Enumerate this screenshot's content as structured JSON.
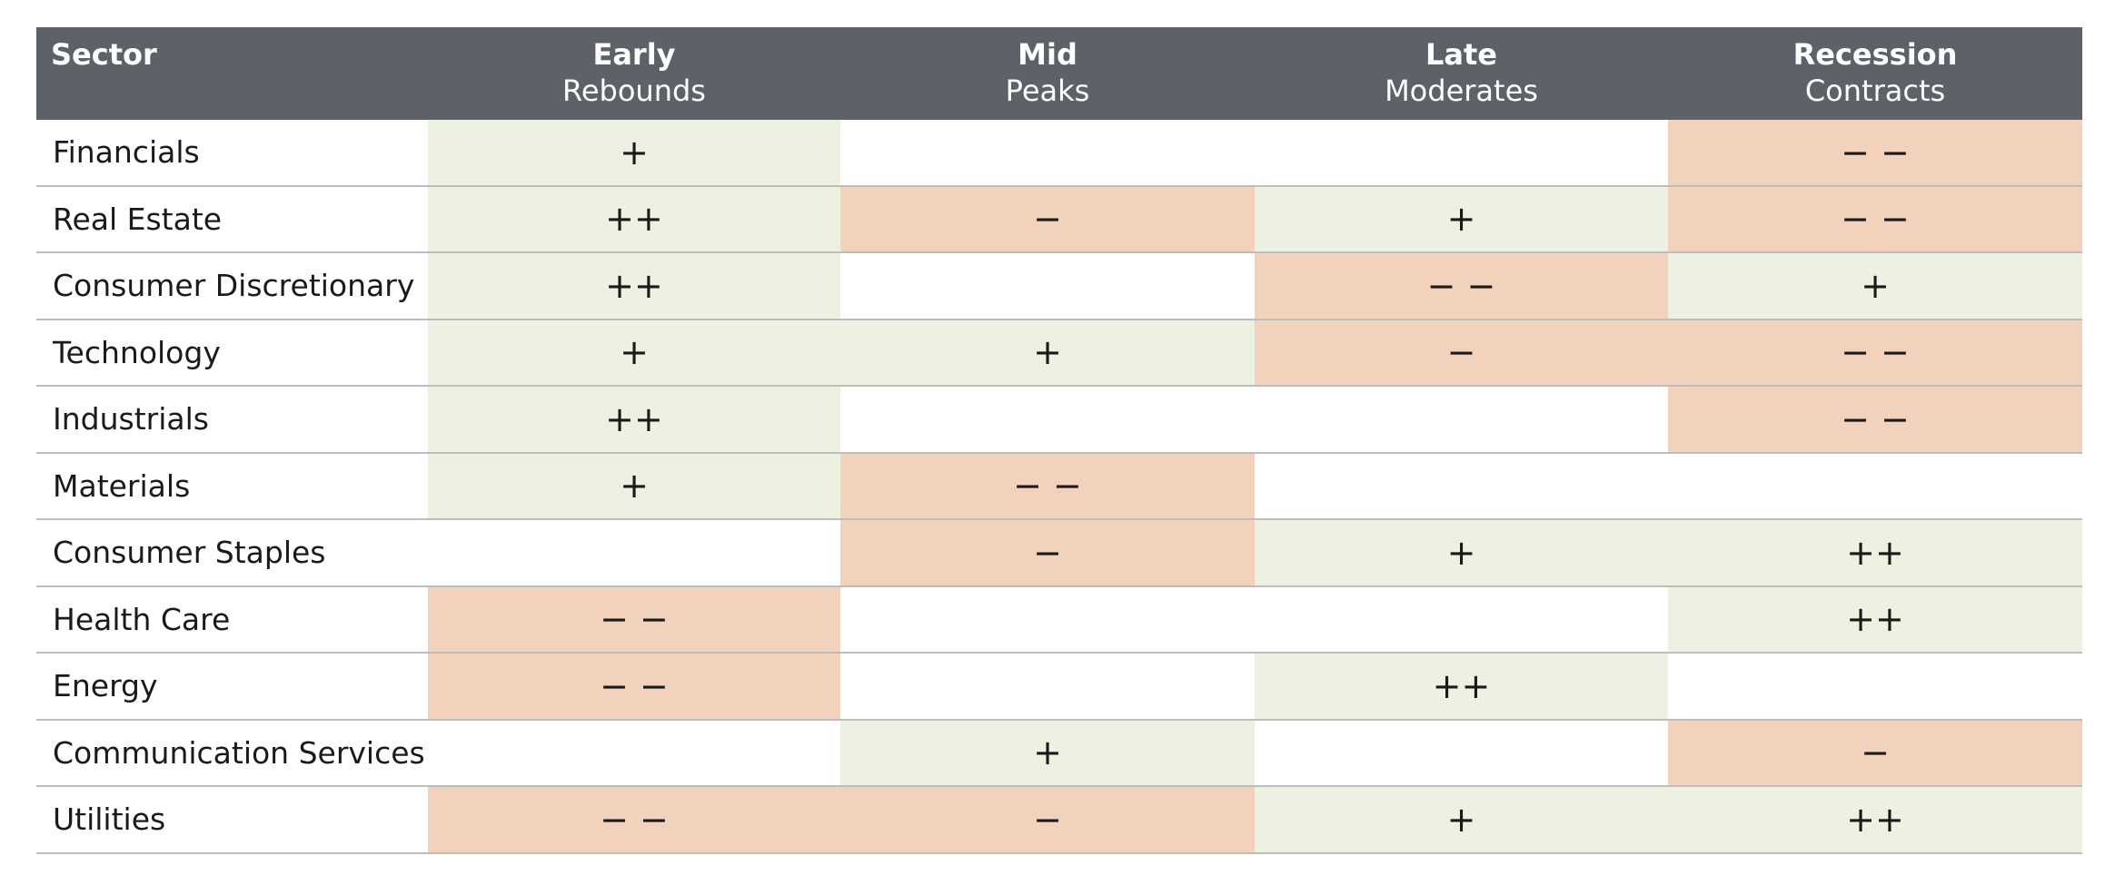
{
  "table": {
    "columns": [
      {
        "title": "Sector"
      },
      {
        "title": "Early",
        "subtitle": "Rebounds"
      },
      {
        "title": "Mid",
        "subtitle": "Peaks"
      },
      {
        "title": "Late",
        "subtitle": "Moderates"
      },
      {
        "title": "Recession",
        "subtitle": "Contracts"
      }
    ],
    "rows": [
      {
        "sector": "Financials",
        "cells": [
          "+",
          null,
          null,
          "− −"
        ]
      },
      {
        "sector": "Real Estate",
        "cells": [
          "++",
          "−",
          "+",
          "− −"
        ]
      },
      {
        "sector": "Consumer Discretionary",
        "cells": [
          "++",
          null,
          "− −",
          "+"
        ]
      },
      {
        "sector": "Technology",
        "cells": [
          "+",
          "+",
          "−",
          "− −"
        ]
      },
      {
        "sector": "Industrials",
        "cells": [
          "++",
          null,
          null,
          "− −"
        ]
      },
      {
        "sector": "Materials",
        "cells": [
          "+",
          "− −",
          null,
          null
        ]
      },
      {
        "sector": "Consumer Staples",
        "cells": [
          null,
          "−",
          "+",
          "++"
        ]
      },
      {
        "sector": "Health Care",
        "cells": [
          "− −",
          null,
          null,
          "++"
        ]
      },
      {
        "sector": "Energy",
        "cells": [
          "− −",
          null,
          "++",
          null
        ]
      },
      {
        "sector": "Communication Services",
        "cells": [
          null,
          "+",
          null,
          "−"
        ]
      },
      {
        "sector": "Utilities",
        "cells": [
          "− −",
          "−",
          "+",
          "++"
        ]
      }
    ]
  }
}
